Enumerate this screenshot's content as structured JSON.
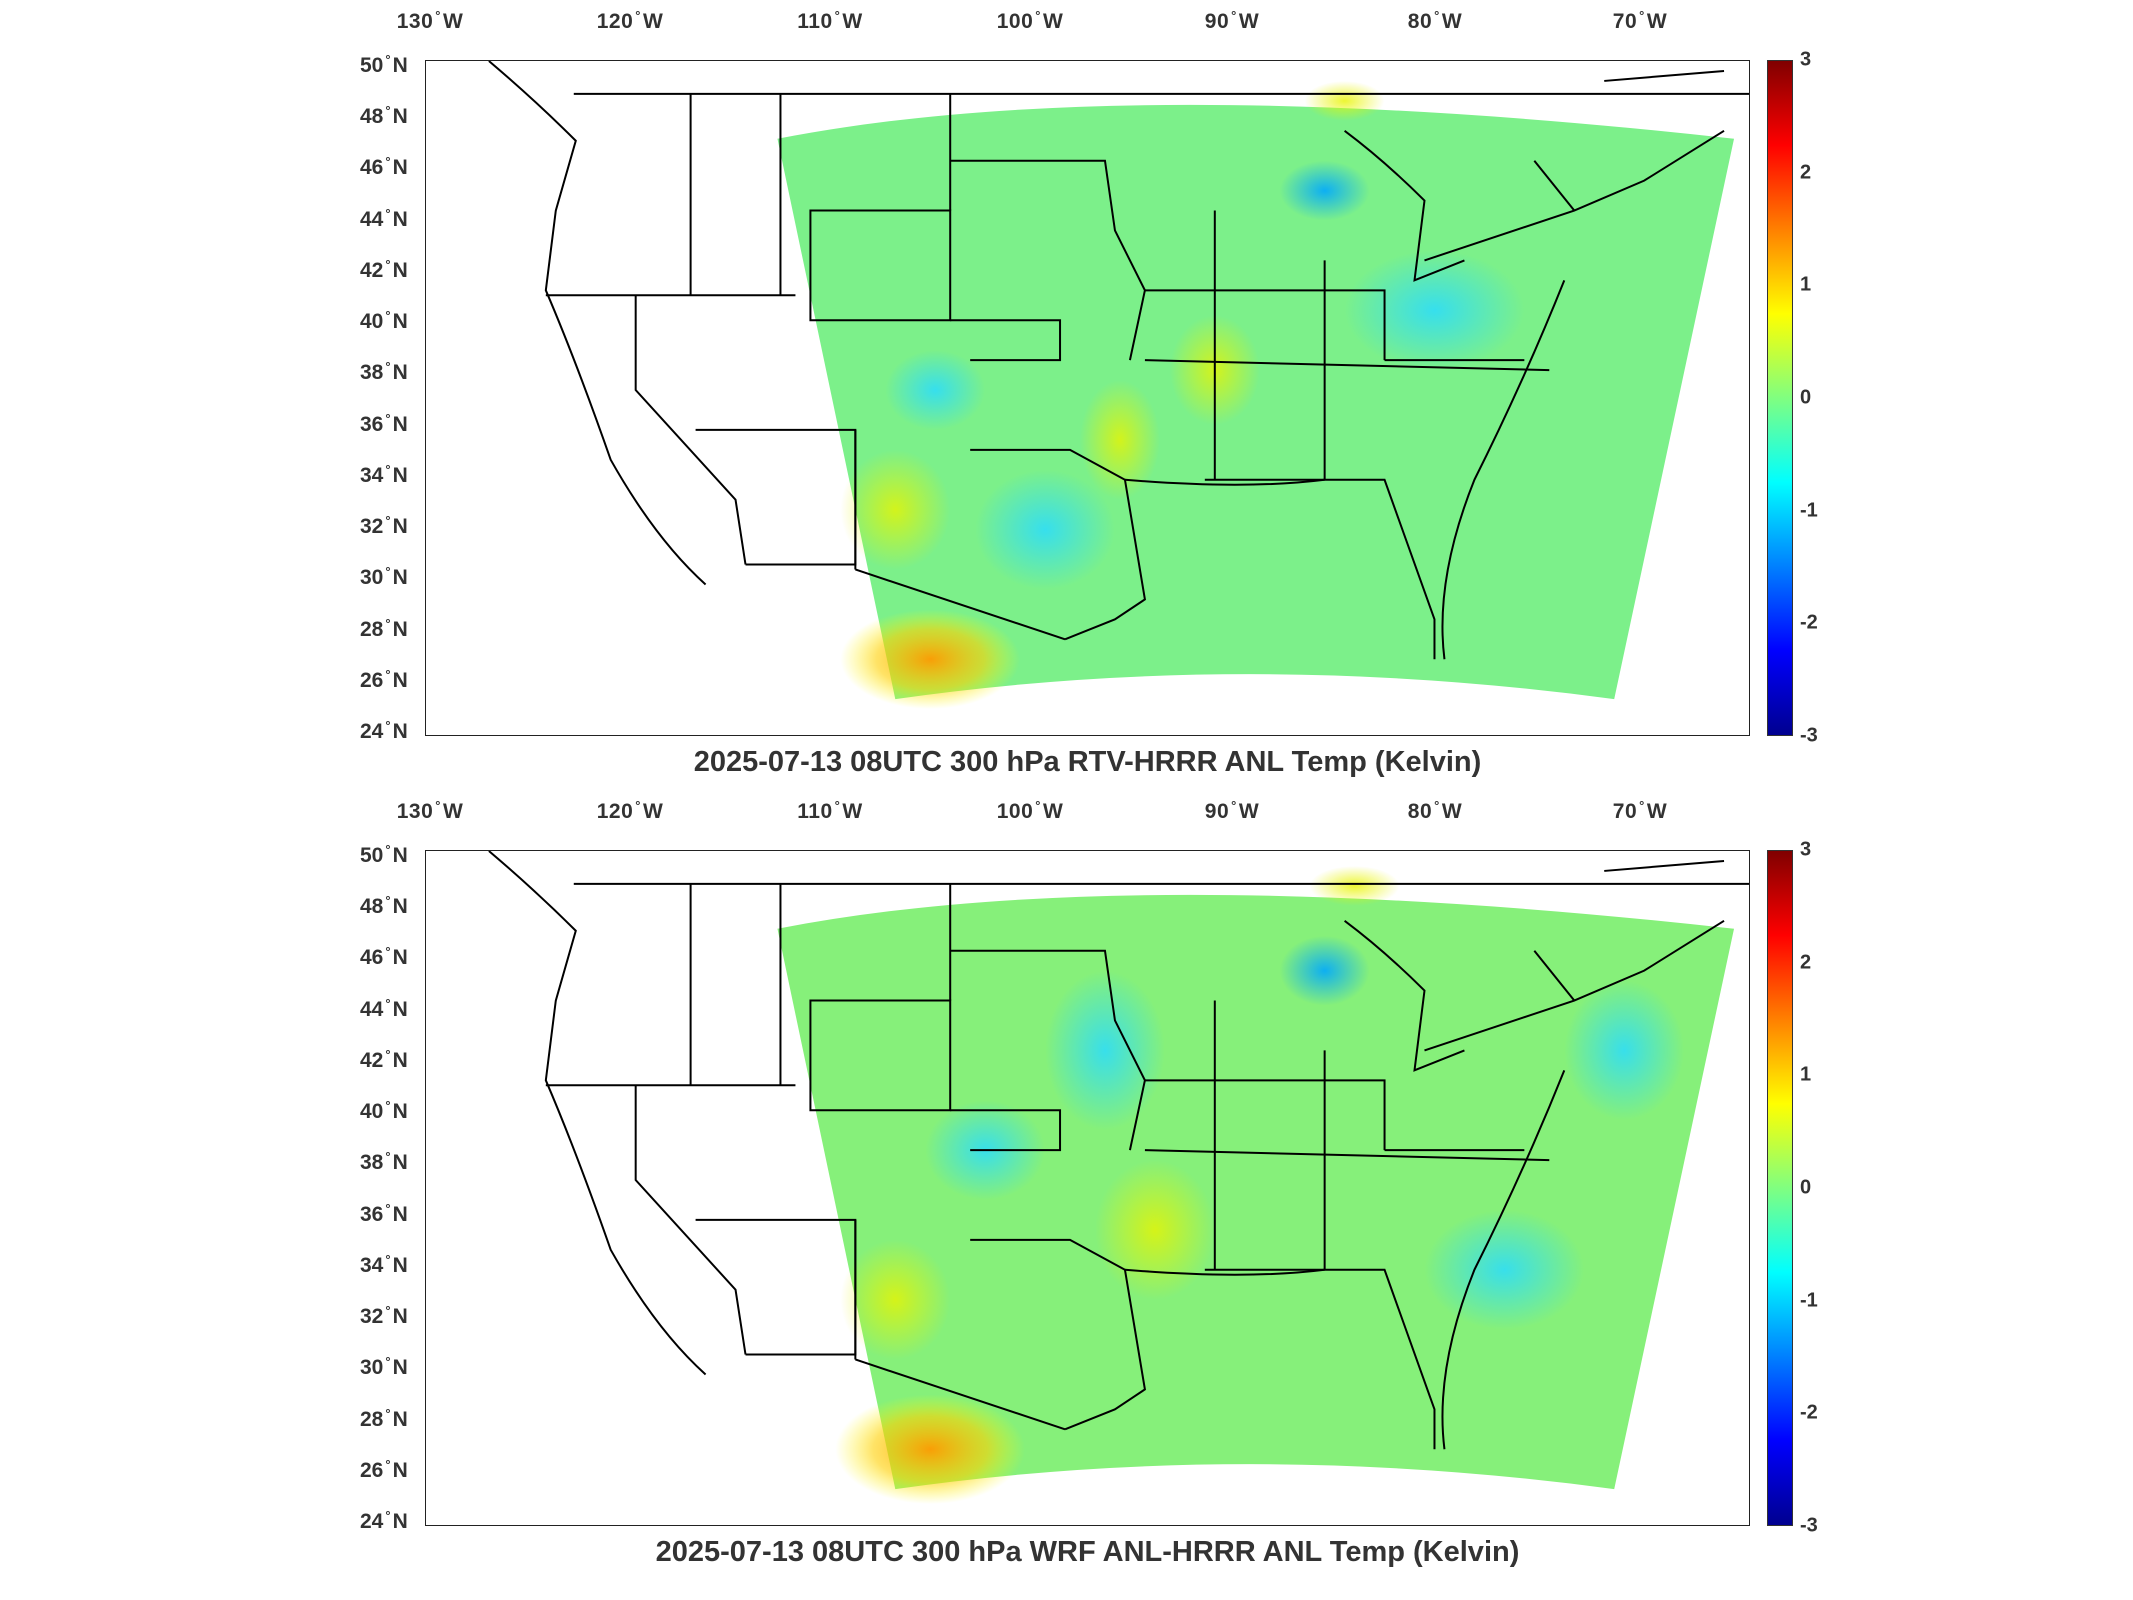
{
  "panels": [
    {
      "title": "2025-07-13 08UTC 300 hPa RTV-HRRR ANL Temp (Kelvin)",
      "field_character": "mostly green/cyan near zero; yellow-orange warm anomalies over southwest Texas/Mexico"
    },
    {
      "title": "2025-07-13 08UTC 300 hPa WRF ANL-HRRR ANL Temp (Kelvin)",
      "field_character": "mostly green/cyan near zero with cyan cool zones; orange warm anomalies over southwest Texas/Mexico"
    }
  ],
  "axes": {
    "lon_labels": [
      "130",
      "120",
      "110",
      "100",
      "90",
      "80",
      "70"
    ],
    "lon_hemisphere": "W",
    "lat_labels": [
      "50",
      "48",
      "46",
      "44",
      "42",
      "40",
      "38",
      "36",
      "34",
      "32",
      "30",
      "28",
      "26",
      "24"
    ],
    "lat_hemisphere": "N",
    "degree_symbol": "°"
  },
  "colorbar": {
    "ticks": [
      "3",
      "2",
      "1",
      "0",
      "-1",
      "-2",
      "-3"
    ],
    "range": [
      -3,
      3
    ],
    "colormap": "jet"
  },
  "colors": {
    "frame": "#222222",
    "state_lines": "#000000",
    "field_neutral": "#7cf08a"
  }
}
